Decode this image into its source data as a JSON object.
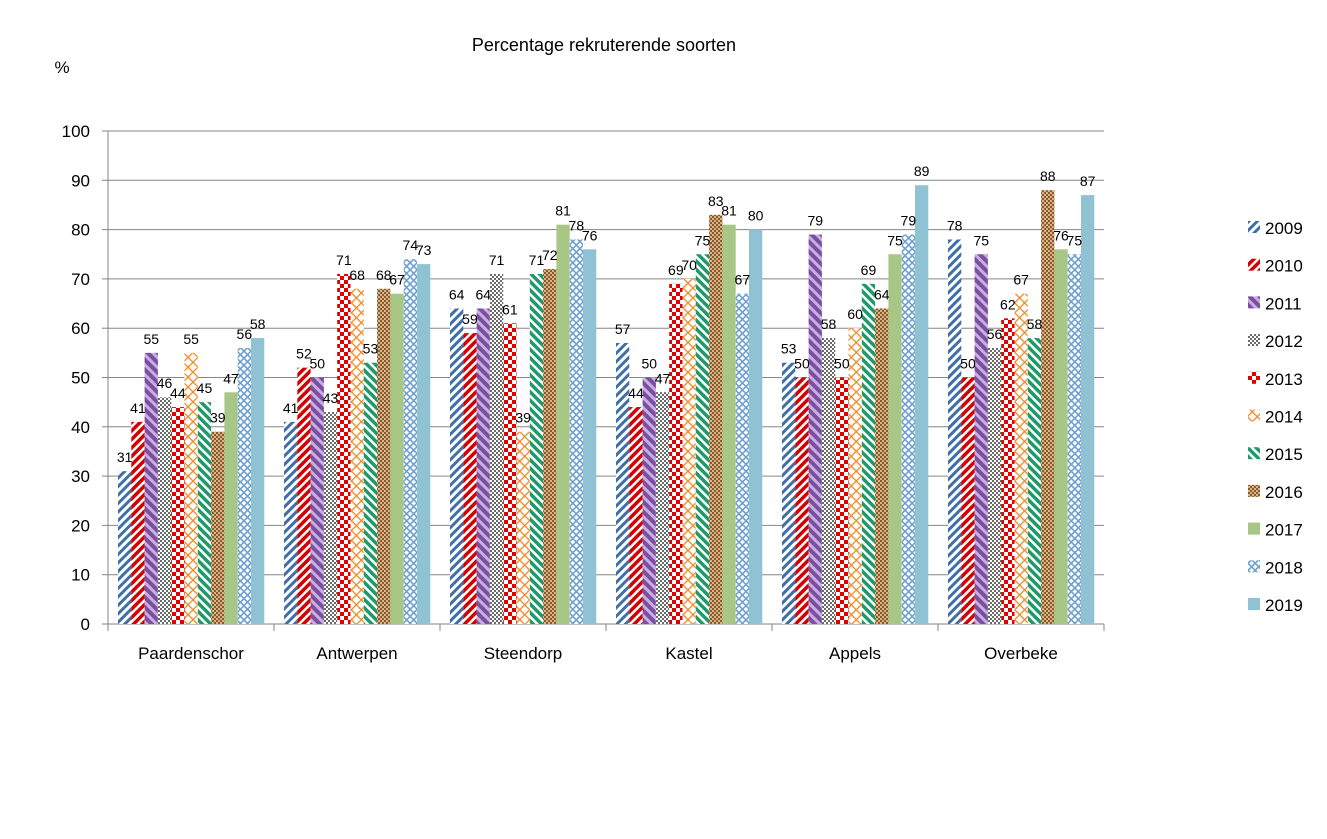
{
  "chart_data": {
    "type": "bar",
    "title": "Percentage rekruterende soorten",
    "ylabel": "%",
    "xlabel": "",
    "ylim": [
      0,
      100
    ],
    "yticks": [
      0,
      10,
      20,
      30,
      40,
      50,
      60,
      70,
      80,
      90,
      100
    ],
    "grid": true,
    "legend_position": "right",
    "categories": [
      "Paardenschor",
      "Antwerpen",
      "Steendorp",
      "Kastel",
      "Appels",
      "Overbeke"
    ],
    "series": [
      {
        "name": "2009",
        "values": [
          31,
          41,
          64,
          57,
          53,
          78
        ],
        "labels": [
          "31",
          "41",
          "64",
          "57",
          "53",
          "78"
        ],
        "color": "#3f6fa8",
        "pattern": "diag-stripes"
      },
      {
        "name": "2010",
        "values": [
          41,
          52,
          59,
          44,
          50,
          50
        ],
        "labels": [
          "41",
          "52",
          "59",
          "44",
          "50",
          "50"
        ],
        "color": "#d40000",
        "pattern": "diag-stripes"
      },
      {
        "name": "2011",
        "values": [
          55,
          50,
          64,
          50,
          79,
          75
        ],
        "labels": [
          "55",
          "50",
          "64",
          "50",
          "79",
          "75"
        ],
        "color": "#7b4ea3",
        "pattern": "wide-diag"
      },
      {
        "name": "2012",
        "values": [
          46,
          43,
          71,
          47,
          58,
          56
        ],
        "labels": [
          "46",
          "43",
          "71",
          "47",
          "58",
          "56"
        ],
        "color": "#000000",
        "pattern": "dots"
      },
      {
        "name": "2013",
        "values": [
          44,
          71,
          61,
          69,
          50,
          62
        ],
        "labels": [
          "44",
          "71",
          "61",
          "69",
          "50",
          "62"
        ],
        "color": "#e00000",
        "pattern": "checker"
      },
      {
        "name": "2014",
        "values": [
          55,
          68,
          39,
          70,
          60,
          67
        ],
        "labels": [
          "55",
          "68",
          "39",
          "70",
          "60",
          "67"
        ],
        "color": "#f08a24",
        "pattern": "diamond"
      },
      {
        "name": "2015",
        "values": [
          45,
          53,
          71,
          75,
          69,
          58
        ],
        "labels": [
          "45",
          "53",
          "71",
          "75",
          "69",
          "58"
        ],
        "color": "#1e9a6a",
        "pattern": "diag-stripes"
      },
      {
        "name": "2016",
        "values": [
          39,
          68,
          72,
          83,
          64,
          88
        ],
        "labels": [
          "39",
          "68",
          "72",
          "83",
          "64",
          "88"
        ],
        "color": "#8b5a2b",
        "pattern": "checker-fine"
      },
      {
        "name": "2017",
        "values": [
          47,
          67,
          81,
          81,
          75,
          76
        ],
        "labels": [
          "47",
          "67",
          "81",
          "81",
          "75",
          "76"
        ],
        "color": "#a8c686",
        "pattern": "solid"
      },
      {
        "name": "2018",
        "values": [
          56,
          74,
          78,
          67,
          79,
          75
        ],
        "labels": [
          "56",
          "74",
          "78",
          "67",
          "79",
          "75"
        ],
        "color": "#6f9fcf",
        "pattern": "cross"
      },
      {
        "name": "2019",
        "values": [
          58,
          73,
          76,
          80,
          89,
          87
        ],
        "labels": [
          "58",
          "73",
          "76",
          "80",
          "89",
          "87"
        ],
        "color": "#8fc3d3",
        "pattern": "solid"
      }
    ]
  }
}
